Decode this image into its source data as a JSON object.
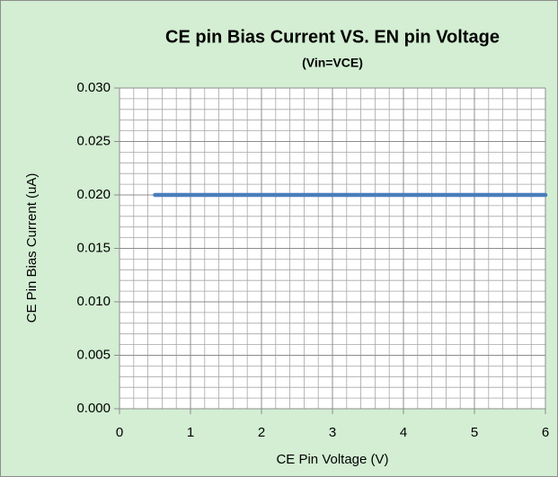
{
  "chart_data": {
    "type": "line",
    "title": "CE pin Bias Current VS. EN pin Voltage",
    "subtitle": "(Vin=VCE)",
    "x_label": "CE Pin Voltage (V)",
    "y_label": "CE Pin Bias Current (uA)",
    "x": [
      0.5,
      1,
      2,
      3,
      4,
      5,
      6
    ],
    "series": [
      {
        "name": "CE Pin Bias Current",
        "color": "#4a7ebb",
        "values": [
          0.02,
          0.02,
          0.02,
          0.02,
          0.02,
          0.02,
          0.02
        ]
      }
    ],
    "xlim": [
      0,
      6
    ],
    "xticks": [
      0,
      1,
      2,
      3,
      4,
      5,
      6
    ],
    "ylim": [
      0,
      0.03
    ],
    "yticks": [
      {
        "value": 0,
        "label": "0.000"
      },
      {
        "value": 0.005,
        "label": "0.005"
      },
      {
        "value": 0.01,
        "label": "0.010"
      },
      {
        "value": 0.015,
        "label": "0.015"
      },
      {
        "value": 0.02,
        "label": "0.020"
      },
      {
        "value": 0.025,
        "label": "0.025"
      },
      {
        "value": 0.03,
        "label": "0.030"
      }
    ],
    "grid": true,
    "minor_grid": true
  }
}
